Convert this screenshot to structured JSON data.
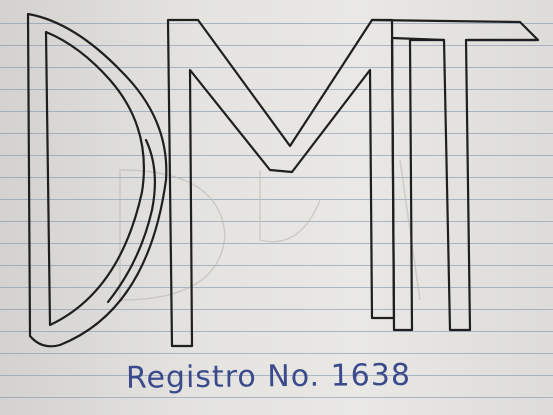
{
  "photo": {
    "subject": "hand-drawn-monogram-on-lined-paper",
    "monogram_letters": [
      "D",
      "M",
      "T"
    ],
    "caption": "Registro No. 1638",
    "colors": {
      "paper": "#e4e3df",
      "ruled_line": "#7f8faa",
      "outline_ink": "#1f1f1f",
      "caption_ink": "#3b4a8c"
    }
  }
}
